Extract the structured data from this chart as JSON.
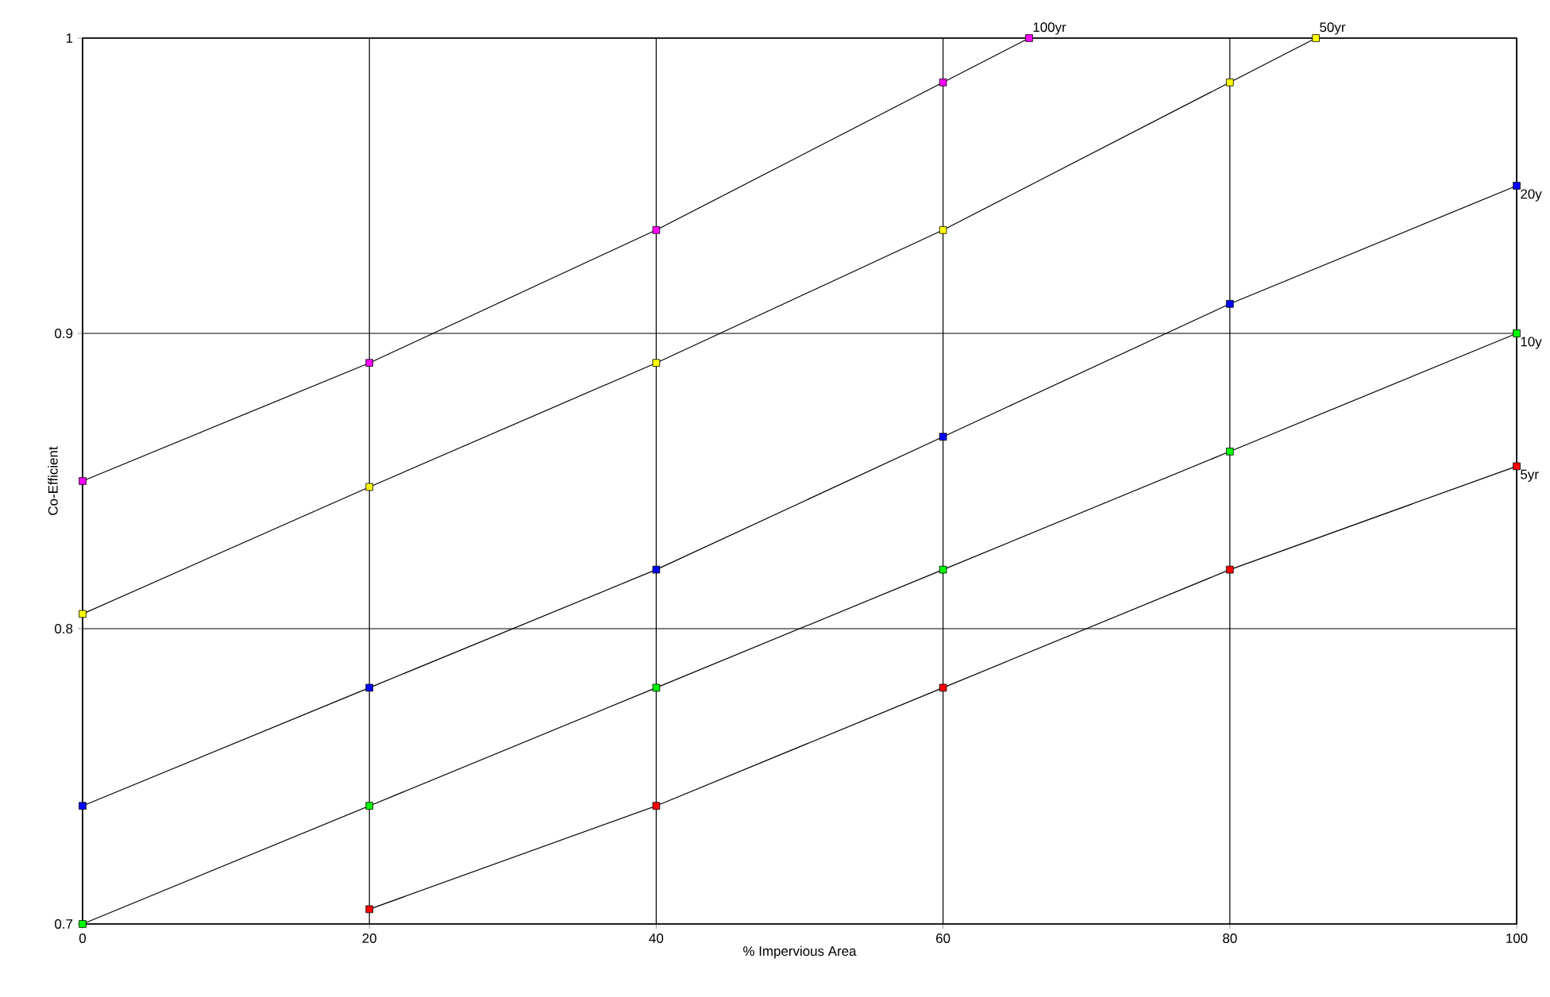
{
  "chart_data": {
    "type": "line",
    "xlabel": "% Impervious Area",
    "ylabel": "Co-Efficient",
    "xlim": [
      0,
      100
    ],
    "ylim": [
      0.7,
      1
    ],
    "xticks": [
      0,
      20,
      40,
      60,
      80,
      100
    ],
    "yticks": [
      0.7,
      0.8,
      0.9,
      1
    ],
    "grid": true,
    "marker": "square",
    "line_style": "solid",
    "series": [
      {
        "name": "100yr",
        "color": "#ff00ff",
        "x": [
          0,
          20,
          40,
          60,
          66
        ],
        "values": [
          0.85,
          0.89,
          0.935,
          0.985,
          1
        ]
      },
      {
        "name": "50yr",
        "color": "#ffff00",
        "x": [
          0,
          20,
          40,
          60,
          80,
          86
        ],
        "values": [
          0.805,
          0.848,
          0.89,
          0.935,
          0.985,
          1
        ]
      },
      {
        "name": "20y",
        "color": "#0000ff",
        "x": [
          0,
          20,
          40,
          60,
          80,
          100
        ],
        "values": [
          0.74,
          0.78,
          0.82,
          0.865,
          0.91,
          0.95
        ]
      },
      {
        "name": "10y",
        "color": "#00ff00",
        "x": [
          0,
          20,
          40,
          60,
          80,
          100
        ],
        "values": [
          0.7,
          0.74,
          0.78,
          0.82,
          0.86,
          0.9
        ]
      },
      {
        "name": "5yr",
        "color": "#ff0000",
        "x": [
          20,
          40,
          60,
          80,
          100
        ],
        "values": [
          0.705,
          0.74,
          0.78,
          0.82,
          0.855
        ]
      }
    ]
  }
}
